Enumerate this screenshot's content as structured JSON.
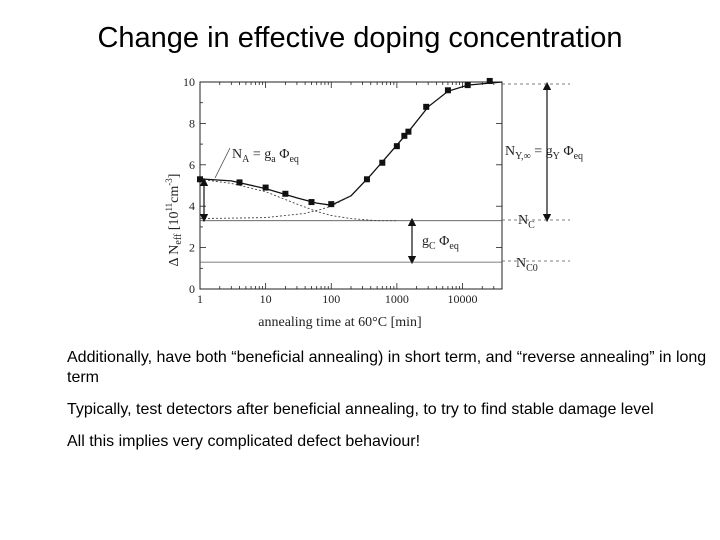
{
  "title": "Change in effective doping concentration",
  "bullets": [
    "Additionally, have both “beneficial annealing) in short term, and “reverse annealing” in long term",
    "Typically, test detectors after beneficial annealing, to try to find stable damage level",
    "All this implies very complicated defect behaviour!"
  ],
  "chart_data": {
    "type": "scatter",
    "xscale": "log",
    "xlim": [
      1,
      40000
    ],
    "ylim": [
      0,
      10
    ],
    "xlabel": "annealing time at 60°C [min]",
    "ylabel": "Δ N_eff [10^11 cm^-3]",
    "xticks": [
      {
        "v": 1,
        "label": "1"
      },
      {
        "v": 10,
        "label": "10"
      },
      {
        "v": 100,
        "label": "100"
      },
      {
        "v": 1000,
        "label": "1000"
      },
      {
        "v": 10000,
        "label": "10000"
      }
    ],
    "yticks": [
      {
        "v": 0,
        "label": "0"
      },
      {
        "v": 2,
        "label": "2"
      },
      {
        "v": 4,
        "label": "4"
      },
      {
        "v": 6,
        "label": "6"
      },
      {
        "v": 8,
        "label": "8"
      },
      {
        "v": 10,
        "label": "10"
      }
    ],
    "points": [
      [
        1,
        5.3
      ],
      [
        4,
        5.15
      ],
      [
        10,
        4.9
      ],
      [
        20,
        4.6
      ],
      [
        50,
        4.2
      ],
      [
        100,
        4.1
      ],
      [
        350,
        5.3
      ],
      [
        600,
        6.1
      ],
      [
        1000,
        6.9
      ],
      [
        1300,
        7.4
      ],
      [
        1500,
        7.6
      ],
      [
        2800,
        8.8
      ],
      [
        6000,
        9.6
      ],
      [
        12000,
        9.85
      ],
      [
        26000,
        10.05
      ]
    ],
    "fit_curve": [
      [
        1,
        5.32
      ],
      [
        3,
        5.22
      ],
      [
        10,
        4.85
      ],
      [
        30,
        4.4
      ],
      [
        60,
        4.15
      ],
      [
        100,
        4.05
      ],
      [
        200,
        4.5
      ],
      [
        400,
        5.5
      ],
      [
        800,
        6.6
      ],
      [
        1500,
        7.6
      ],
      [
        3000,
        8.8
      ],
      [
        6000,
        9.55
      ],
      [
        12000,
        9.85
      ],
      [
        40000,
        10.0
      ]
    ],
    "beneficial_component": [
      [
        1,
        5.3
      ],
      [
        3,
        5.1
      ],
      [
        10,
        4.7
      ],
      [
        30,
        4.1
      ],
      [
        60,
        3.75
      ],
      [
        100,
        3.55
      ],
      [
        200,
        3.4
      ],
      [
        500,
        3.3
      ],
      [
        1000,
        3.3
      ]
    ],
    "reverse_component": [
      [
        1,
        3.4
      ],
      [
        10,
        3.45
      ],
      [
        40,
        3.65
      ],
      [
        70,
        3.85
      ],
      [
        100,
        4.0
      ],
      [
        200,
        4.5
      ]
    ],
    "hlines": [
      {
        "y": 3.3,
        "label": "N_C"
      },
      {
        "y": 1.3,
        "label": "N_C0"
      }
    ],
    "annotations": {
      "na": {
        "main": "N",
        "sub": "A",
        "rest": " = g",
        "sub2": "a",
        "rest2": " Φ",
        "sub3": "eq"
      },
      "nc": {
        "main": "N",
        "sub": "C"
      },
      "nc0": {
        "main": "N",
        "sub": "C0"
      },
      "gc": {
        "main": "g",
        "sub": "C",
        "rest": " Φ",
        "sub2": "eq"
      },
      "ny": {
        "main": "N",
        "sub": "Y,∞",
        "rest": " = g",
        "sub2": "Y",
        "rest2": " Φ",
        "sub3": "eq"
      }
    }
  }
}
